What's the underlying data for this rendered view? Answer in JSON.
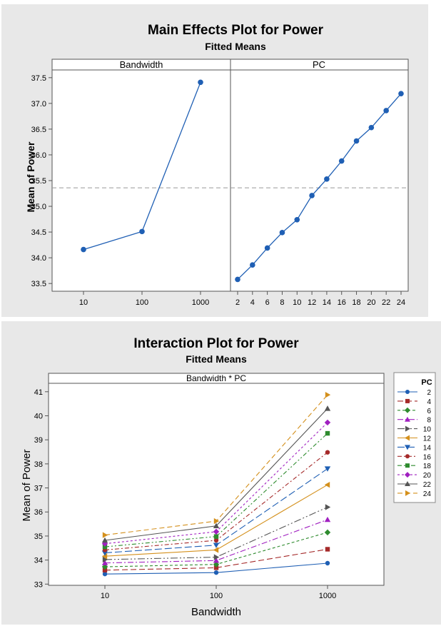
{
  "colors": {
    "panel_bg": "#e8e8e8",
    "plot_bg": "#ffffff",
    "main_line": "#1f5fb4",
    "reference_line": "#999999"
  },
  "chart_data": [
    {
      "type": "line",
      "title": "Main Effects Plot for Power",
      "subtitle": "Fitted Means",
      "ylabel": "Mean of Power",
      "ylim": [
        33.35,
        37.65
      ],
      "yticks": [
        "33.5",
        "34.0",
        "34.5",
        "35.0",
        "35.5",
        "36.0",
        "36.5",
        "37.0",
        "37.5"
      ],
      "reference_line": 35.36,
      "grid": false,
      "panels": [
        {
          "label": "Bandwidth",
          "categories": [
            "10",
            "100",
            "1000"
          ],
          "values": [
            34.16,
            34.51,
            37.41
          ]
        },
        {
          "label": "PC",
          "categories": [
            "2",
            "4",
            "6",
            "8",
            "10",
            "12",
            "14",
            "16",
            "18",
            "20",
            "22",
            "24"
          ],
          "values": [
            33.58,
            33.86,
            34.19,
            34.49,
            34.74,
            35.21,
            35.53,
            35.88,
            36.27,
            36.53,
            36.86,
            37.19
          ]
        }
      ]
    },
    {
      "type": "line",
      "title": "Interaction Plot for Power",
      "subtitle": "Fitted Means",
      "panel_label": "Bandwidth * PC",
      "xlabel": "Bandwidth",
      "ylabel": "Mean of Power",
      "categories": [
        "10",
        "100",
        "1000"
      ],
      "ylim": [
        32.95,
        41.35
      ],
      "yticks": [
        "33",
        "34",
        "35",
        "36",
        "37",
        "38",
        "39",
        "40",
        "41"
      ],
      "legend_title": "PC",
      "legend_position": "right",
      "grid": false,
      "series": [
        {
          "name": "2",
          "values": [
            33.42,
            33.48,
            33.87
          ],
          "color": "#1f5fb4",
          "marker": "circle",
          "dash": ""
        },
        {
          "name": "4",
          "values": [
            33.58,
            33.68,
            34.45
          ],
          "color": "#a52a2a",
          "marker": "square",
          "dash": "8,4"
        },
        {
          "name": "6",
          "values": [
            33.72,
            33.82,
            35.15
          ],
          "color": "#2e8b2e",
          "marker": "diamond",
          "dash": "4,3"
        },
        {
          "name": "8",
          "values": [
            33.88,
            33.98,
            35.68
          ],
          "color": "#a020c0",
          "marker": "triangle",
          "dash": "8,3,2,3"
        },
        {
          "name": "10",
          "values": [
            34.02,
            34.12,
            36.2
          ],
          "color": "#555555",
          "marker": "tri-right",
          "dash": "10,3,2,3,2,3"
        },
        {
          "name": "12",
          "values": [
            34.16,
            34.42,
            37.13
          ],
          "color": "#d4901c",
          "marker": "tri-left",
          "dash": ""
        },
        {
          "name": "14",
          "values": [
            34.3,
            34.62,
            37.8
          ],
          "color": "#1f5fb4",
          "marker": "tri-down",
          "dash": "10,4"
        },
        {
          "name": "16",
          "values": [
            34.42,
            34.82,
            38.48
          ],
          "color": "#a52a2a",
          "marker": "circle",
          "dash": "6,3,2,3"
        },
        {
          "name": "18",
          "values": [
            34.55,
            34.98,
            39.27
          ],
          "color": "#2e8b2e",
          "marker": "square",
          "dash": "6,3,2,3,2,3"
        },
        {
          "name": "20",
          "values": [
            34.68,
            35.18,
            39.72
          ],
          "color": "#a020c0",
          "marker": "diamond",
          "dash": "3,3"
        },
        {
          "name": "22",
          "values": [
            34.82,
            35.42,
            40.3
          ],
          "color": "#555555",
          "marker": "triangle",
          "dash": ""
        },
        {
          "name": "24",
          "values": [
            35.04,
            35.62,
            40.87
          ],
          "color": "#d4901c",
          "marker": "tri-right",
          "dash": "7,4"
        }
      ]
    }
  ]
}
